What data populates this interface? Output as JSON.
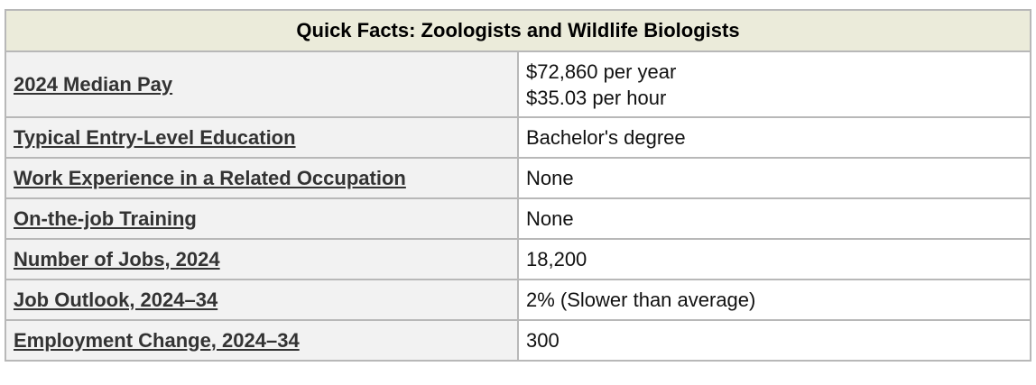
{
  "table": {
    "title": "Quick Facts: Zoologists and Wildlife Biologists",
    "rows": [
      {
        "label": "2024 Median Pay",
        "values": [
          "$72,860 per year",
          "$35.03 per hour"
        ]
      },
      {
        "label": "Typical Entry-Level Education",
        "values": [
          "Bachelor's degree"
        ]
      },
      {
        "label": "Work Experience in a Related Occupation",
        "values": [
          "None"
        ]
      },
      {
        "label": "On-the-job Training",
        "values": [
          "None"
        ]
      },
      {
        "label": "Number of Jobs, 2024",
        "values": [
          "18,200"
        ]
      },
      {
        "label": "Job Outlook, 2024–34",
        "values": [
          "2% (Slower than average)"
        ]
      },
      {
        "label": "Employment Change, 2024–34",
        "values": [
          "300"
        ]
      }
    ]
  },
  "colors": {
    "header_bg": "#ebebda",
    "label_bg": "#f2f2f2",
    "border": "#b8b8b8",
    "link": "#333333"
  }
}
